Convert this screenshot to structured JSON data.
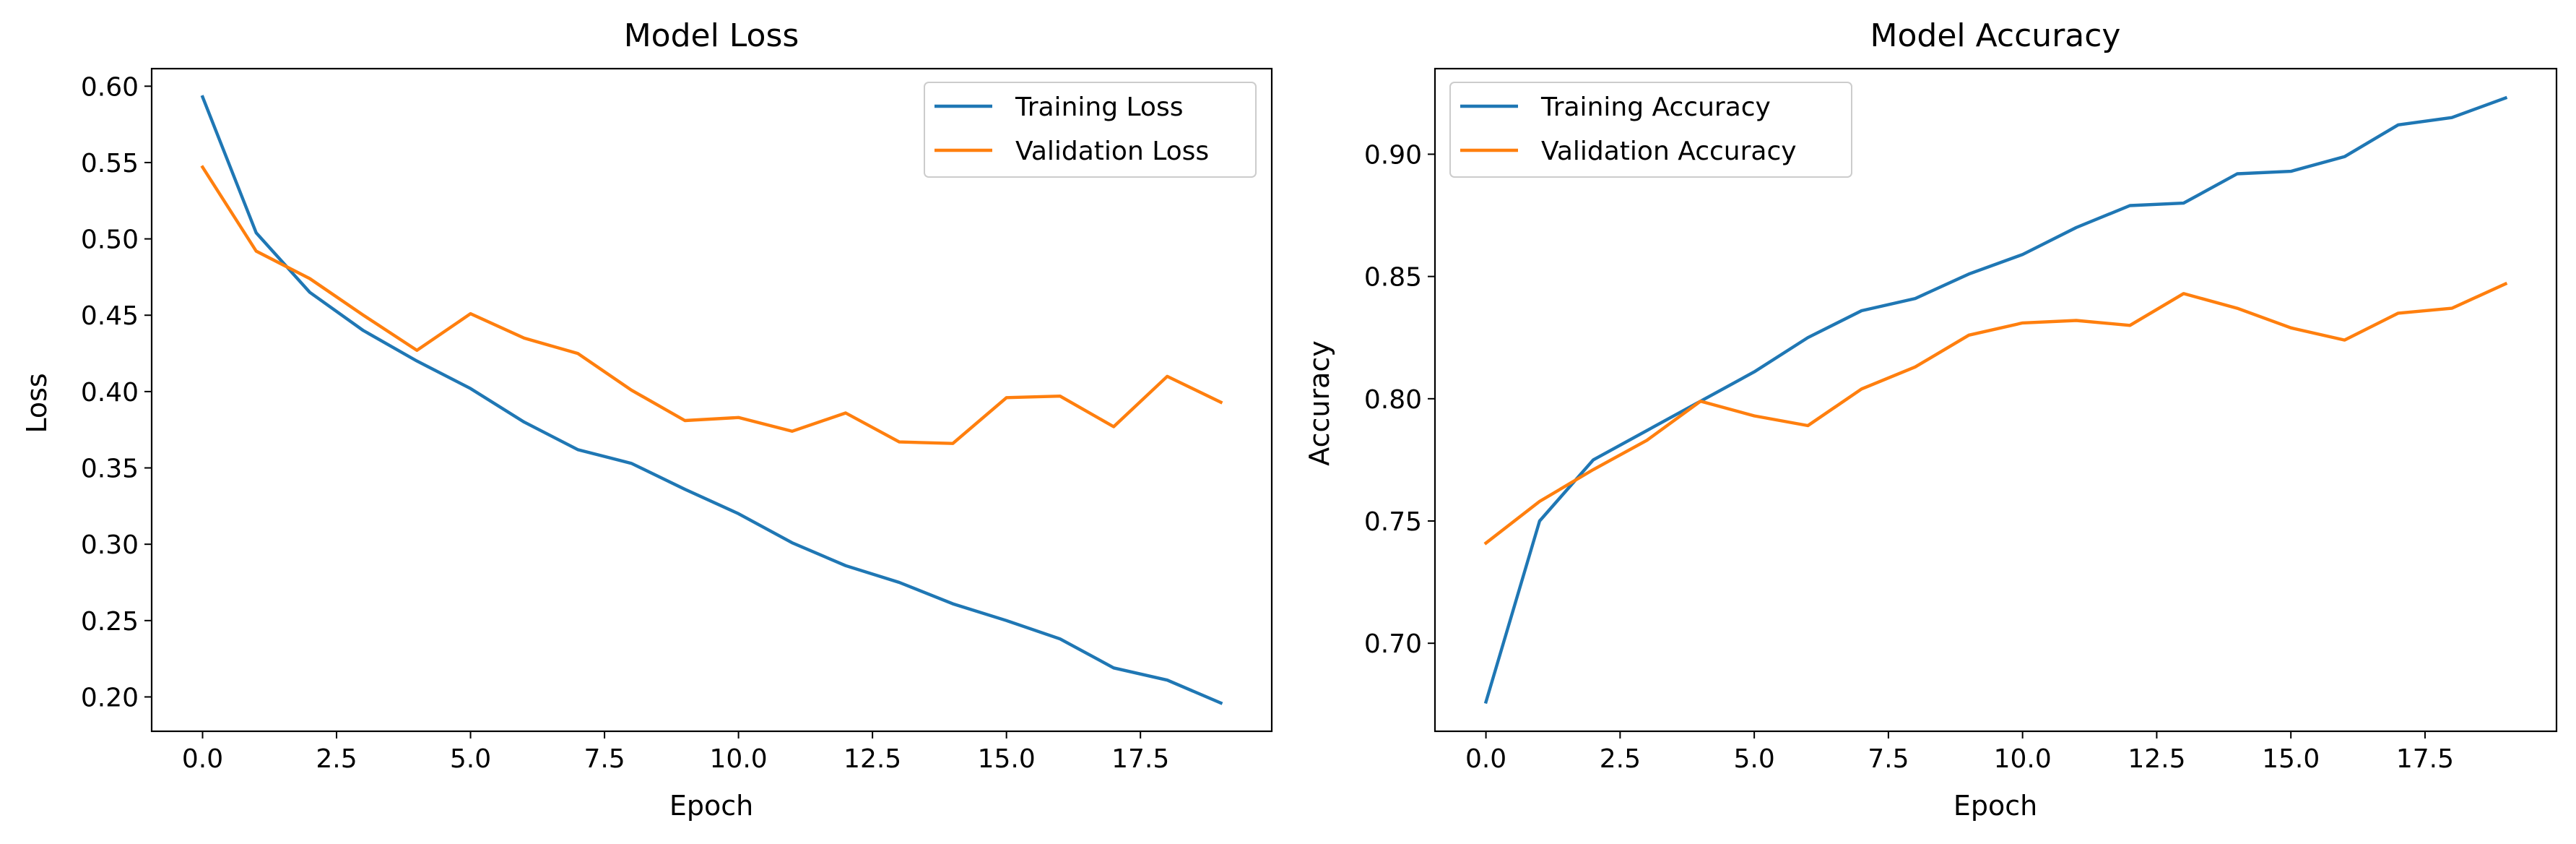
{
  "chart_data": [
    {
      "type": "line",
      "title": "Model Loss",
      "xlabel": "Epoch",
      "ylabel": "Loss",
      "xlim": [
        -0.95,
        19.95
      ],
      "ylim": [
        0.1775,
        0.6115
      ],
      "xticks": [
        0,
        2.5,
        5,
        7.5,
        10,
        12.5,
        15,
        17.5
      ],
      "xtick_labels": [
        "0.0",
        "2.5",
        "5.0",
        "7.5",
        "10.0",
        "12.5",
        "15.0",
        "17.5"
      ],
      "yticks": [
        0.2,
        0.25,
        0.3,
        0.35,
        0.4,
        0.45,
        0.5,
        0.55,
        0.6
      ],
      "ytick_labels": [
        "0.20",
        "0.25",
        "0.30",
        "0.35",
        "0.40",
        "0.45",
        "0.50",
        "0.55",
        "0.60"
      ],
      "grid": false,
      "legend_position": "top-right",
      "x": [
        0,
        1,
        2,
        3,
        4,
        5,
        6,
        7,
        8,
        9,
        10,
        11,
        12,
        13,
        14,
        15,
        16,
        17,
        18,
        19
      ],
      "series": [
        {
          "name": "Training Loss",
          "color": "#1f77b4",
          "values": [
            0.593,
            0.504,
            0.465,
            0.44,
            0.42,
            0.402,
            0.38,
            0.362,
            0.353,
            0.336,
            0.32,
            0.301,
            0.286,
            0.275,
            0.261,
            0.25,
            0.238,
            0.219,
            0.211,
            0.196
          ]
        },
        {
          "name": "Validation Loss",
          "color": "#ff7f0e",
          "values": [
            0.547,
            0.492,
            0.474,
            0.45,
            0.427,
            0.451,
            0.435,
            0.425,
            0.401,
            0.381,
            0.383,
            0.374,
            0.386,
            0.367,
            0.366,
            0.396,
            0.397,
            0.377,
            0.41,
            0.393
          ]
        }
      ]
    },
    {
      "type": "line",
      "title": "Model Accuracy",
      "xlabel": "Epoch",
      "ylabel": "Accuracy",
      "xlim": [
        -0.95,
        19.95
      ],
      "ylim": [
        0.664,
        0.935
      ],
      "xticks": [
        0,
        2.5,
        5,
        7.5,
        10,
        12.5,
        15,
        17.5
      ],
      "xtick_labels": [
        "0.0",
        "2.5",
        "5.0",
        "7.5",
        "10.0",
        "12.5",
        "15.0",
        "17.5"
      ],
      "yticks": [
        0.7,
        0.75,
        0.8,
        0.85,
        0.9
      ],
      "ytick_labels": [
        "0.70",
        "0.75",
        "0.80",
        "0.85",
        "0.90"
      ],
      "grid": false,
      "legend_position": "top-left",
      "x": [
        0,
        1,
        2,
        3,
        4,
        5,
        6,
        7,
        8,
        9,
        10,
        11,
        12,
        13,
        14,
        15,
        16,
        17,
        18,
        19
      ],
      "series": [
        {
          "name": "Training Accuracy",
          "color": "#1f77b4",
          "values": [
            0.676,
            0.75,
            0.775,
            0.787,
            0.799,
            0.811,
            0.825,
            0.836,
            0.841,
            0.851,
            0.859,
            0.87,
            0.879,
            0.88,
            0.892,
            0.893,
            0.899,
            0.912,
            0.915,
            0.923
          ]
        },
        {
          "name": "Validation Accuracy",
          "color": "#ff7f0e",
          "values": [
            0.741,
            0.758,
            0.771,
            0.783,
            0.799,
            0.793,
            0.789,
            0.804,
            0.813,
            0.826,
            0.831,
            0.832,
            0.83,
            0.843,
            0.837,
            0.829,
            0.824,
            0.835,
            0.837,
            0.847
          ]
        }
      ]
    }
  ]
}
